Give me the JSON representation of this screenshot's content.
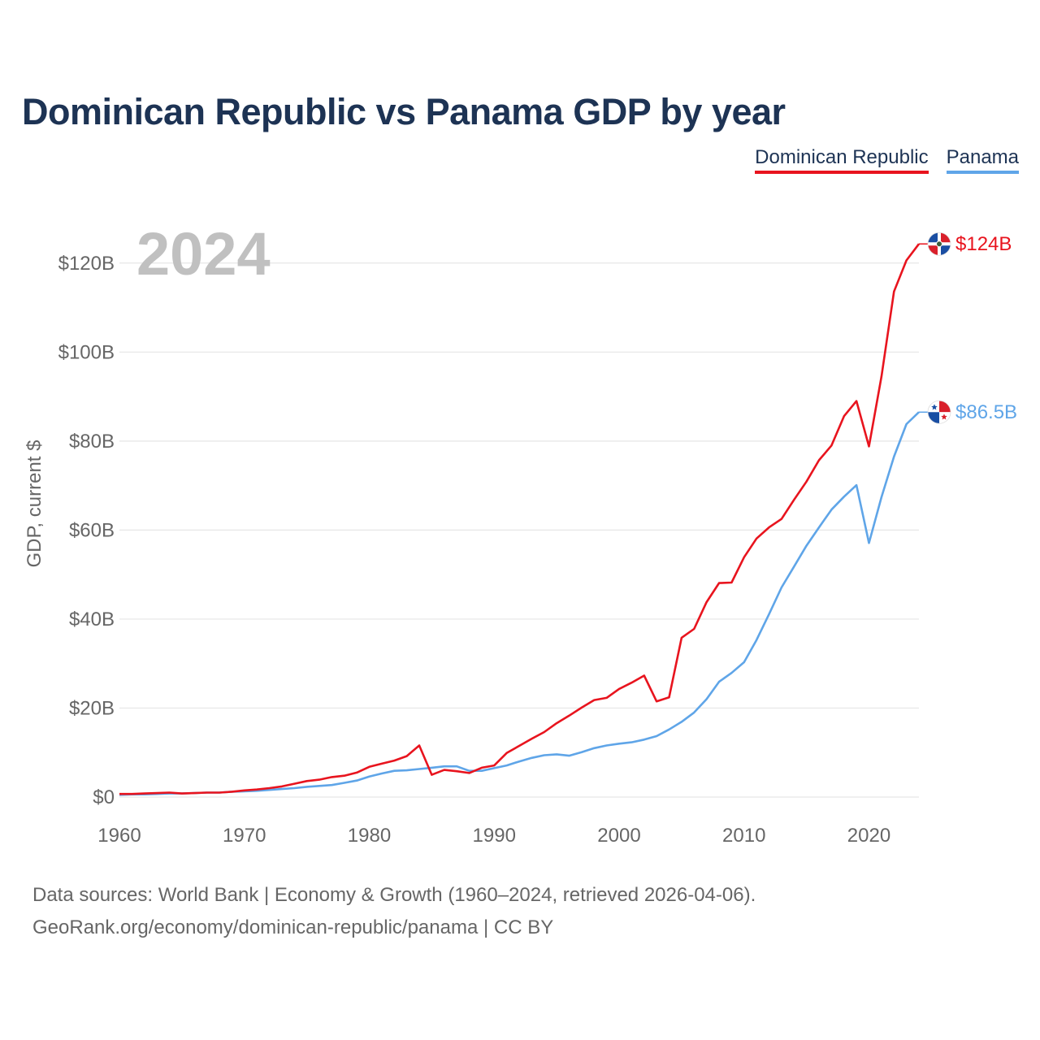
{
  "title": "Dominican Republic vs Panama GDP by year",
  "legend": [
    {
      "name": "Dominican Republic",
      "color": "#e8141e"
    },
    {
      "name": "Panama",
      "color": "#5fa5e8"
    }
  ],
  "year_label": "2024",
  "source": {
    "line1": "Data sources: World Bank | Economy & Growth (1960–2024, retrieved 2026-04-06).",
    "line2": "GeoRank.org/economy/dominican-republic/panama | CC BY"
  },
  "chart_data": {
    "type": "line",
    "title": "Dominican Republic vs Panama GDP by year",
    "xlabel": "",
    "ylabel": "GDP, current $",
    "xlim": [
      1960,
      2024
    ],
    "ylim": [
      0,
      130
    ],
    "y_unit": "billion US$",
    "grid": true,
    "x_ticks": [
      1960,
      1970,
      1980,
      1990,
      2000,
      2010,
      2020
    ],
    "x_tick_labels": [
      "1960",
      "1970",
      "1980",
      "1990",
      "2000",
      "2010",
      "2020"
    ],
    "y_ticks": [
      0,
      20,
      40,
      60,
      80,
      100,
      120
    ],
    "y_tick_labels": [
      "$0",
      "$20B",
      "$40B",
      "$60B",
      "$80B",
      "$100B",
      "$120B"
    ],
    "x": [
      1960,
      1961,
      1962,
      1963,
      1964,
      1965,
      1966,
      1967,
      1968,
      1969,
      1970,
      1971,
      1972,
      1973,
      1974,
      1975,
      1976,
      1977,
      1978,
      1979,
      1980,
      1981,
      1982,
      1983,
      1984,
      1985,
      1986,
      1987,
      1988,
      1989,
      1990,
      1991,
      1992,
      1993,
      1994,
      1995,
      1996,
      1997,
      1998,
      1999,
      2000,
      2001,
      2002,
      2003,
      2004,
      2005,
      2006,
      2007,
      2008,
      2009,
      2010,
      2011,
      2012,
      2013,
      2014,
      2015,
      2016,
      2017,
      2018,
      2019,
      2020,
      2021,
      2022,
      2023,
      2024
    ],
    "series": [
      {
        "name": "Dominican Republic",
        "color": "#e8141e",
        "end_label": "$124B",
        "values": [
          0.7,
          0.7,
          0.8,
          0.9,
          1.0,
          0.8,
          0.9,
          1.0,
          1.0,
          1.2,
          1.5,
          1.7,
          2.0,
          2.4,
          3.0,
          3.6,
          3.9,
          4.5,
          4.8,
          5.5,
          6.8,
          7.5,
          8.2,
          9.2,
          11.6,
          5.0,
          6.1,
          5.8,
          5.4,
          6.6,
          7.1,
          9.9,
          11.5,
          13.1,
          14.6,
          16.6,
          18.3,
          20.1,
          21.8,
          22.3,
          24.3,
          25.7,
          27.3,
          21.5,
          22.4,
          35.8,
          37.8,
          43.8,
          48.1,
          48.2,
          53.9,
          58.1,
          60.6,
          62.5,
          66.8,
          70.9,
          75.7,
          79.0,
          85.6,
          89.0,
          78.8,
          94.5,
          113.6,
          120.6,
          124.3
        ]
      },
      {
        "name": "Panama",
        "color": "#5fa5e8",
        "end_label": "$86.5B",
        "values": [
          0.5,
          0.6,
          0.6,
          0.7,
          0.8,
          0.8,
          0.9,
          1.0,
          1.0,
          1.2,
          1.3,
          1.4,
          1.6,
          1.8,
          2.0,
          2.3,
          2.5,
          2.7,
          3.2,
          3.7,
          4.6,
          5.3,
          5.9,
          6.0,
          6.3,
          6.6,
          6.9,
          6.9,
          5.9,
          5.9,
          6.5,
          7.1,
          8.0,
          8.8,
          9.4,
          9.6,
          9.3,
          10.1,
          11.0,
          11.6,
          12.0,
          12.3,
          12.9,
          13.7,
          15.2,
          16.9,
          19.0,
          22.0,
          25.9,
          27.9,
          30.3,
          35.3,
          41.1,
          47.1,
          51.8,
          56.5,
          60.6,
          64.6,
          67.5,
          70.1,
          57.1,
          67.4,
          76.5,
          83.8,
          86.5
        ]
      }
    ]
  }
}
